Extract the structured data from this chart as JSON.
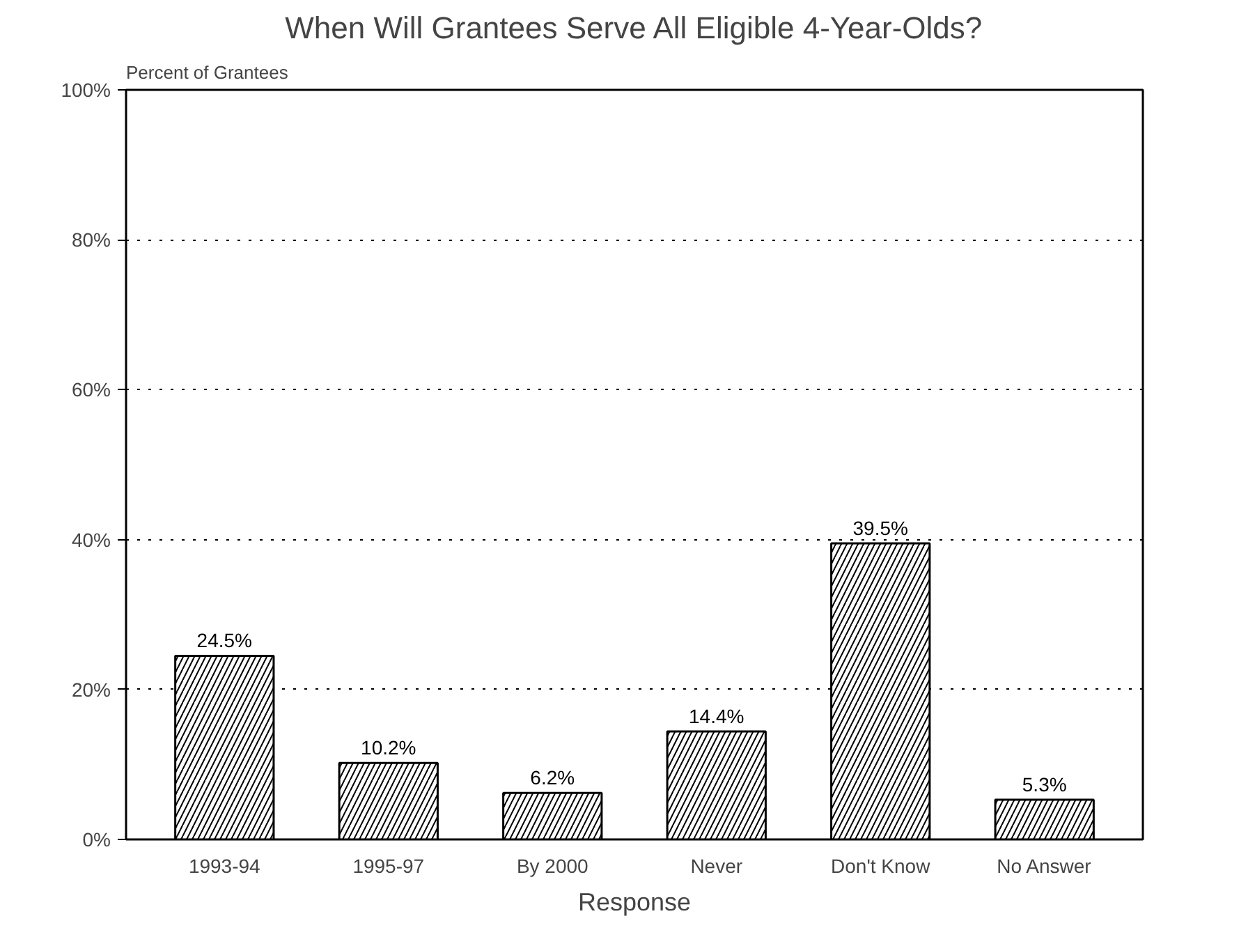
{
  "chart_data": {
    "type": "bar",
    "title": "When Will Grantees Serve All Eligible 4-Year-Olds?",
    "ylabel": "Percent of Grantees",
    "xlabel": "Response",
    "categories": [
      "1993-94",
      "1995-97",
      "By 2000",
      "Never",
      "Don't Know",
      "No Answer"
    ],
    "values": [
      24.5,
      10.2,
      6.2,
      14.4,
      39.5,
      5.3
    ],
    "value_labels": [
      "24.5%",
      "10.2%",
      "6.2%",
      "14.4%",
      "39.5%",
      "5.3%"
    ],
    "color": "#ffffff",
    "ylim": [
      0,
      100
    ],
    "yticks": [
      {
        "value": 0,
        "label": "0%"
      },
      {
        "value": 20,
        "label": "20%"
      },
      {
        "value": 40,
        "label": "40%"
      },
      {
        "value": 60,
        "label": "60%"
      },
      {
        "value": 80,
        "label": "80%"
      },
      {
        "value": 100,
        "label": "100%"
      }
    ],
    "grid": "y"
  }
}
